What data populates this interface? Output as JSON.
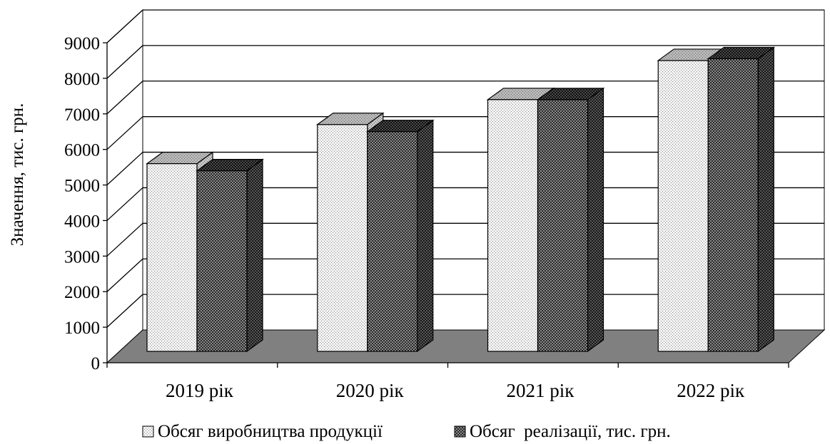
{
  "chart_data": {
    "type": "bar",
    "title": "",
    "xlabel": "",
    "ylabel": "Значення, тис. грн.",
    "ylim": [
      0,
      9000
    ],
    "yticks": [
      0,
      1000,
      2000,
      3000,
      4000,
      5000,
      6000,
      7000,
      8000,
      9000
    ],
    "categories": [
      "2019 рік",
      "2020 рік",
      "2021 рік",
      "2022 рік"
    ],
    "series": [
      {
        "name": "Обсяг виробництва продукції",
        "values": [
          5600,
          6700,
          7400,
          8500
        ],
        "color": "#e6e6e6"
      },
      {
        "name": "Обсяг  реалізації, тис. грн.",
        "values": [
          5400,
          6500,
          7400,
          8550
        ],
        "color": "#6e6e6e"
      }
    ],
    "grid": true,
    "three_d": true,
    "legend_position": "bottom",
    "floor_color": "#808080"
  }
}
